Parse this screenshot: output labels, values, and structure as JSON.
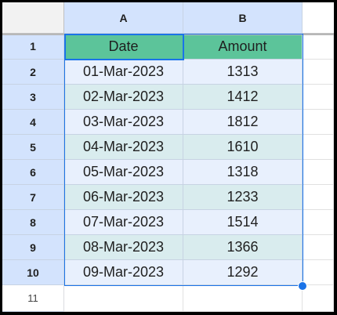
{
  "columns": [
    "A",
    "B"
  ],
  "rows": [
    "1",
    "2",
    "3",
    "4",
    "5",
    "6",
    "7",
    "8",
    "9",
    "10",
    "11"
  ],
  "table": {
    "headers": [
      "Date",
      "Amount"
    ],
    "rows": [
      [
        "01-Mar-2023",
        "1313"
      ],
      [
        "02-Mar-2023",
        "1412"
      ],
      [
        "03-Mar-2023",
        "1812"
      ],
      [
        "04-Mar-2023",
        "1610"
      ],
      [
        "05-Mar-2023",
        "1318"
      ],
      [
        "06-Mar-2023",
        "1233"
      ],
      [
        "07-Mar-2023",
        "1514"
      ],
      [
        "08-Mar-2023",
        "1366"
      ],
      [
        "09-Mar-2023",
        "1292"
      ]
    ]
  },
  "colors": {
    "header_fill": "#5cc49a",
    "band_fill": "#d9ecee",
    "row_fill": "#e8f0fd",
    "selection": "#1a73e8"
  }
}
